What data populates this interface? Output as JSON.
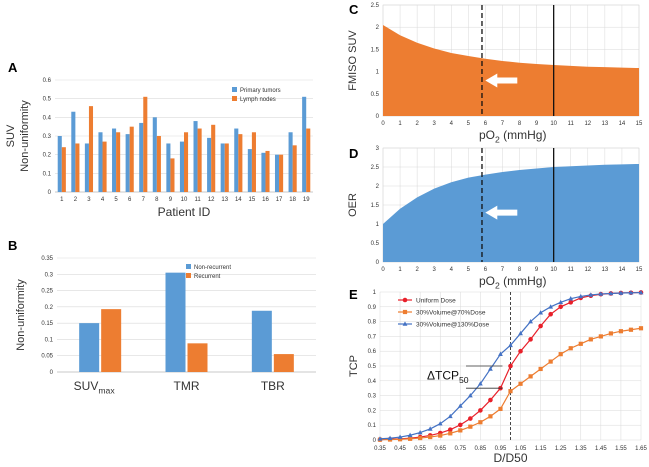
{
  "colors": {
    "blue": "#5B9BD5",
    "orange": "#ED7D31",
    "red": "#E8202A",
    "grid": "#D9D9D9",
    "axis": "#BFBFBF",
    "text": "#333333"
  },
  "chart_data": [
    {
      "panel": "A",
      "type": "bar",
      "ylabel_line1": "SUV",
      "ylabel_line2": "Non-uniformity",
      "xlabel": "Patient ID",
      "categories": [
        "1",
        "2",
        "3",
        "4",
        "5",
        "6",
        "7",
        "8",
        "9",
        "10",
        "11",
        "12",
        "13",
        "14",
        "15",
        "16",
        "17",
        "18",
        "19"
      ],
      "ylim": [
        0,
        0.6
      ],
      "yticks": [
        "0",
        "0.1",
        "0.2",
        "0.3",
        "0.4",
        "0.5",
        "0.6"
      ],
      "series": [
        {
          "name": "Primary tumors",
          "color": "#5B9BD5",
          "values": [
            0.3,
            0.43,
            0.26,
            0.32,
            0.34,
            0.31,
            0.37,
            0.4,
            0.26,
            0.27,
            0.38,
            0.29,
            0.26,
            0.34,
            0.23,
            0.21,
            0.2,
            0.32,
            0.51
          ]
        },
        {
          "name": "Lymph nodes",
          "color": "#ED7D31",
          "values": [
            0.24,
            0.26,
            0.46,
            0.27,
            0.32,
            0.35,
            0.51,
            0.3,
            0.18,
            0.32,
            0.34,
            0.36,
            0.26,
            0.31,
            0.32,
            0.22,
            0.2,
            0.25,
            0.34
          ]
        }
      ]
    },
    {
      "panel": "B",
      "type": "bar",
      "ylabel": "Non-uniformity",
      "categories": [
        "SUV",
        "TMR",
        "TBR"
      ],
      "category_sub": [
        "max",
        "",
        ""
      ],
      "ylim": [
        0,
        0.35
      ],
      "yticks": [
        "0",
        "0.05",
        "0.1",
        "0.15",
        "0.2",
        "0.25",
        "0.3",
        "0.35"
      ],
      "series": [
        {
          "name": "Non-recurrent",
          "color": "#5B9BD5",
          "values": [
            0.15,
            0.305,
            0.188
          ]
        },
        {
          "name": "Recurrent",
          "color": "#ED7D31",
          "values": [
            0.193,
            0.088,
            0.055
          ]
        }
      ]
    },
    {
      "panel": "C",
      "type": "area",
      "ylabel": "FMISO SUV",
      "xlabel": "pO",
      "xlabel_sub": "2",
      "xlabel_unit": " (mmHg)",
      "xlim": [
        0,
        15
      ],
      "ylim": [
        0,
        2.5
      ],
      "xticks": [
        "0",
        "1",
        "2",
        "3",
        "4",
        "5",
        "6",
        "7",
        "8",
        "9",
        "10",
        "11",
        "12",
        "13",
        "14",
        "15"
      ],
      "yticks": [
        "0",
        "0.5",
        "1",
        "1.5",
        "2",
        "2.5"
      ],
      "x": [
        0,
        1,
        2,
        3,
        4,
        5,
        6,
        7,
        8,
        9,
        10,
        11,
        12,
        13,
        14,
        15
      ],
      "y": [
        2.05,
        1.82,
        1.65,
        1.52,
        1.42,
        1.35,
        1.29,
        1.24,
        1.2,
        1.17,
        1.15,
        1.13,
        1.11,
        1.1,
        1.09,
        1.08
      ],
      "dashed_x": 5.8,
      "solid_x": 10,
      "color": "#ED7D31"
    },
    {
      "panel": "D",
      "type": "area",
      "ylabel": "OER",
      "xlabel": "pO",
      "xlabel_sub": "2",
      "xlabel_unit": " (mmHg)",
      "xlim": [
        0,
        15
      ],
      "ylim": [
        0,
        3
      ],
      "xticks": [
        "0",
        "1",
        "2",
        "3",
        "4",
        "5",
        "6",
        "7",
        "8",
        "9",
        "10",
        "11",
        "12",
        "13",
        "14",
        "15"
      ],
      "yticks": [
        "0",
        "0.5",
        "1",
        "1.5",
        "2",
        "2.5",
        "3"
      ],
      "x": [
        0,
        1,
        2,
        3,
        4,
        5,
        6,
        7,
        8,
        9,
        10,
        11,
        12,
        13,
        14,
        15
      ],
      "y": [
        1.0,
        1.4,
        1.7,
        1.93,
        2.1,
        2.22,
        2.3,
        2.37,
        2.42,
        2.46,
        2.5,
        2.52,
        2.54,
        2.56,
        2.57,
        2.58
      ],
      "dashed_x": 5.8,
      "solid_x": 10,
      "color": "#5B9BD5"
    },
    {
      "panel": "E",
      "type": "line",
      "ylabel": "TCP",
      "xlabel": "D/D50",
      "xlim": [
        0.35,
        1.65
      ],
      "ylim": [
        0,
        1
      ],
      "xticks": [
        "0.35",
        "0.45",
        "0.55",
        "0.65",
        "0.75",
        "0.85",
        "0.95",
        "1.05",
        "1.15",
        "1.25",
        "1.35",
        "1.45",
        "1.55",
        "1.65"
      ],
      "yticks": [
        "0",
        "0.1",
        "0.2",
        "0.3",
        "0.4",
        "0.5",
        "0.6",
        "0.7",
        "0.8",
        "0.9",
        "1"
      ],
      "x": [
        0.35,
        0.4,
        0.45,
        0.5,
        0.55,
        0.6,
        0.65,
        0.7,
        0.75,
        0.8,
        0.85,
        0.9,
        0.95,
        1.0,
        1.05,
        1.1,
        1.15,
        1.2,
        1.25,
        1.3,
        1.35,
        1.4,
        1.45,
        1.5,
        1.55,
        1.6,
        1.65
      ],
      "series": [
        {
          "name": "Uniform Dose",
          "color": "#E8202A",
          "marker": "circle",
          "values": [
            0.003,
            0.005,
            0.008,
            0.012,
            0.02,
            0.031,
            0.047,
            0.07,
            0.102,
            0.145,
            0.2,
            0.27,
            0.35,
            0.5,
            0.6,
            0.68,
            0.77,
            0.85,
            0.9,
            0.93,
            0.96,
            0.975,
            0.985,
            0.99,
            0.993,
            0.995,
            0.997
          ]
        },
        {
          "name": "30%Volume@70%Dose",
          "color": "#ED7D31",
          "marker": "square",
          "values": [
            0.002,
            0.003,
            0.005,
            0.008,
            0.013,
            0.02,
            0.03,
            0.045,
            0.065,
            0.09,
            0.12,
            0.16,
            0.21,
            0.33,
            0.38,
            0.43,
            0.48,
            0.53,
            0.58,
            0.62,
            0.65,
            0.68,
            0.7,
            0.72,
            0.735,
            0.745,
            0.755
          ]
        },
        {
          "name": "30%Volume@130%Dose",
          "color": "#4472C4",
          "marker": "triangle",
          "values": [
            0.008,
            0.012,
            0.02,
            0.032,
            0.05,
            0.075,
            0.11,
            0.16,
            0.23,
            0.3,
            0.38,
            0.48,
            0.58,
            0.64,
            0.72,
            0.8,
            0.86,
            0.9,
            0.93,
            0.955,
            0.97,
            0.98,
            0.987,
            0.99,
            0.993,
            0.995,
            0.996
          ]
        }
      ],
      "dashed_x": 1.0,
      "annotation": "ΔTCP",
      "annotation_sub": "50"
    }
  ]
}
